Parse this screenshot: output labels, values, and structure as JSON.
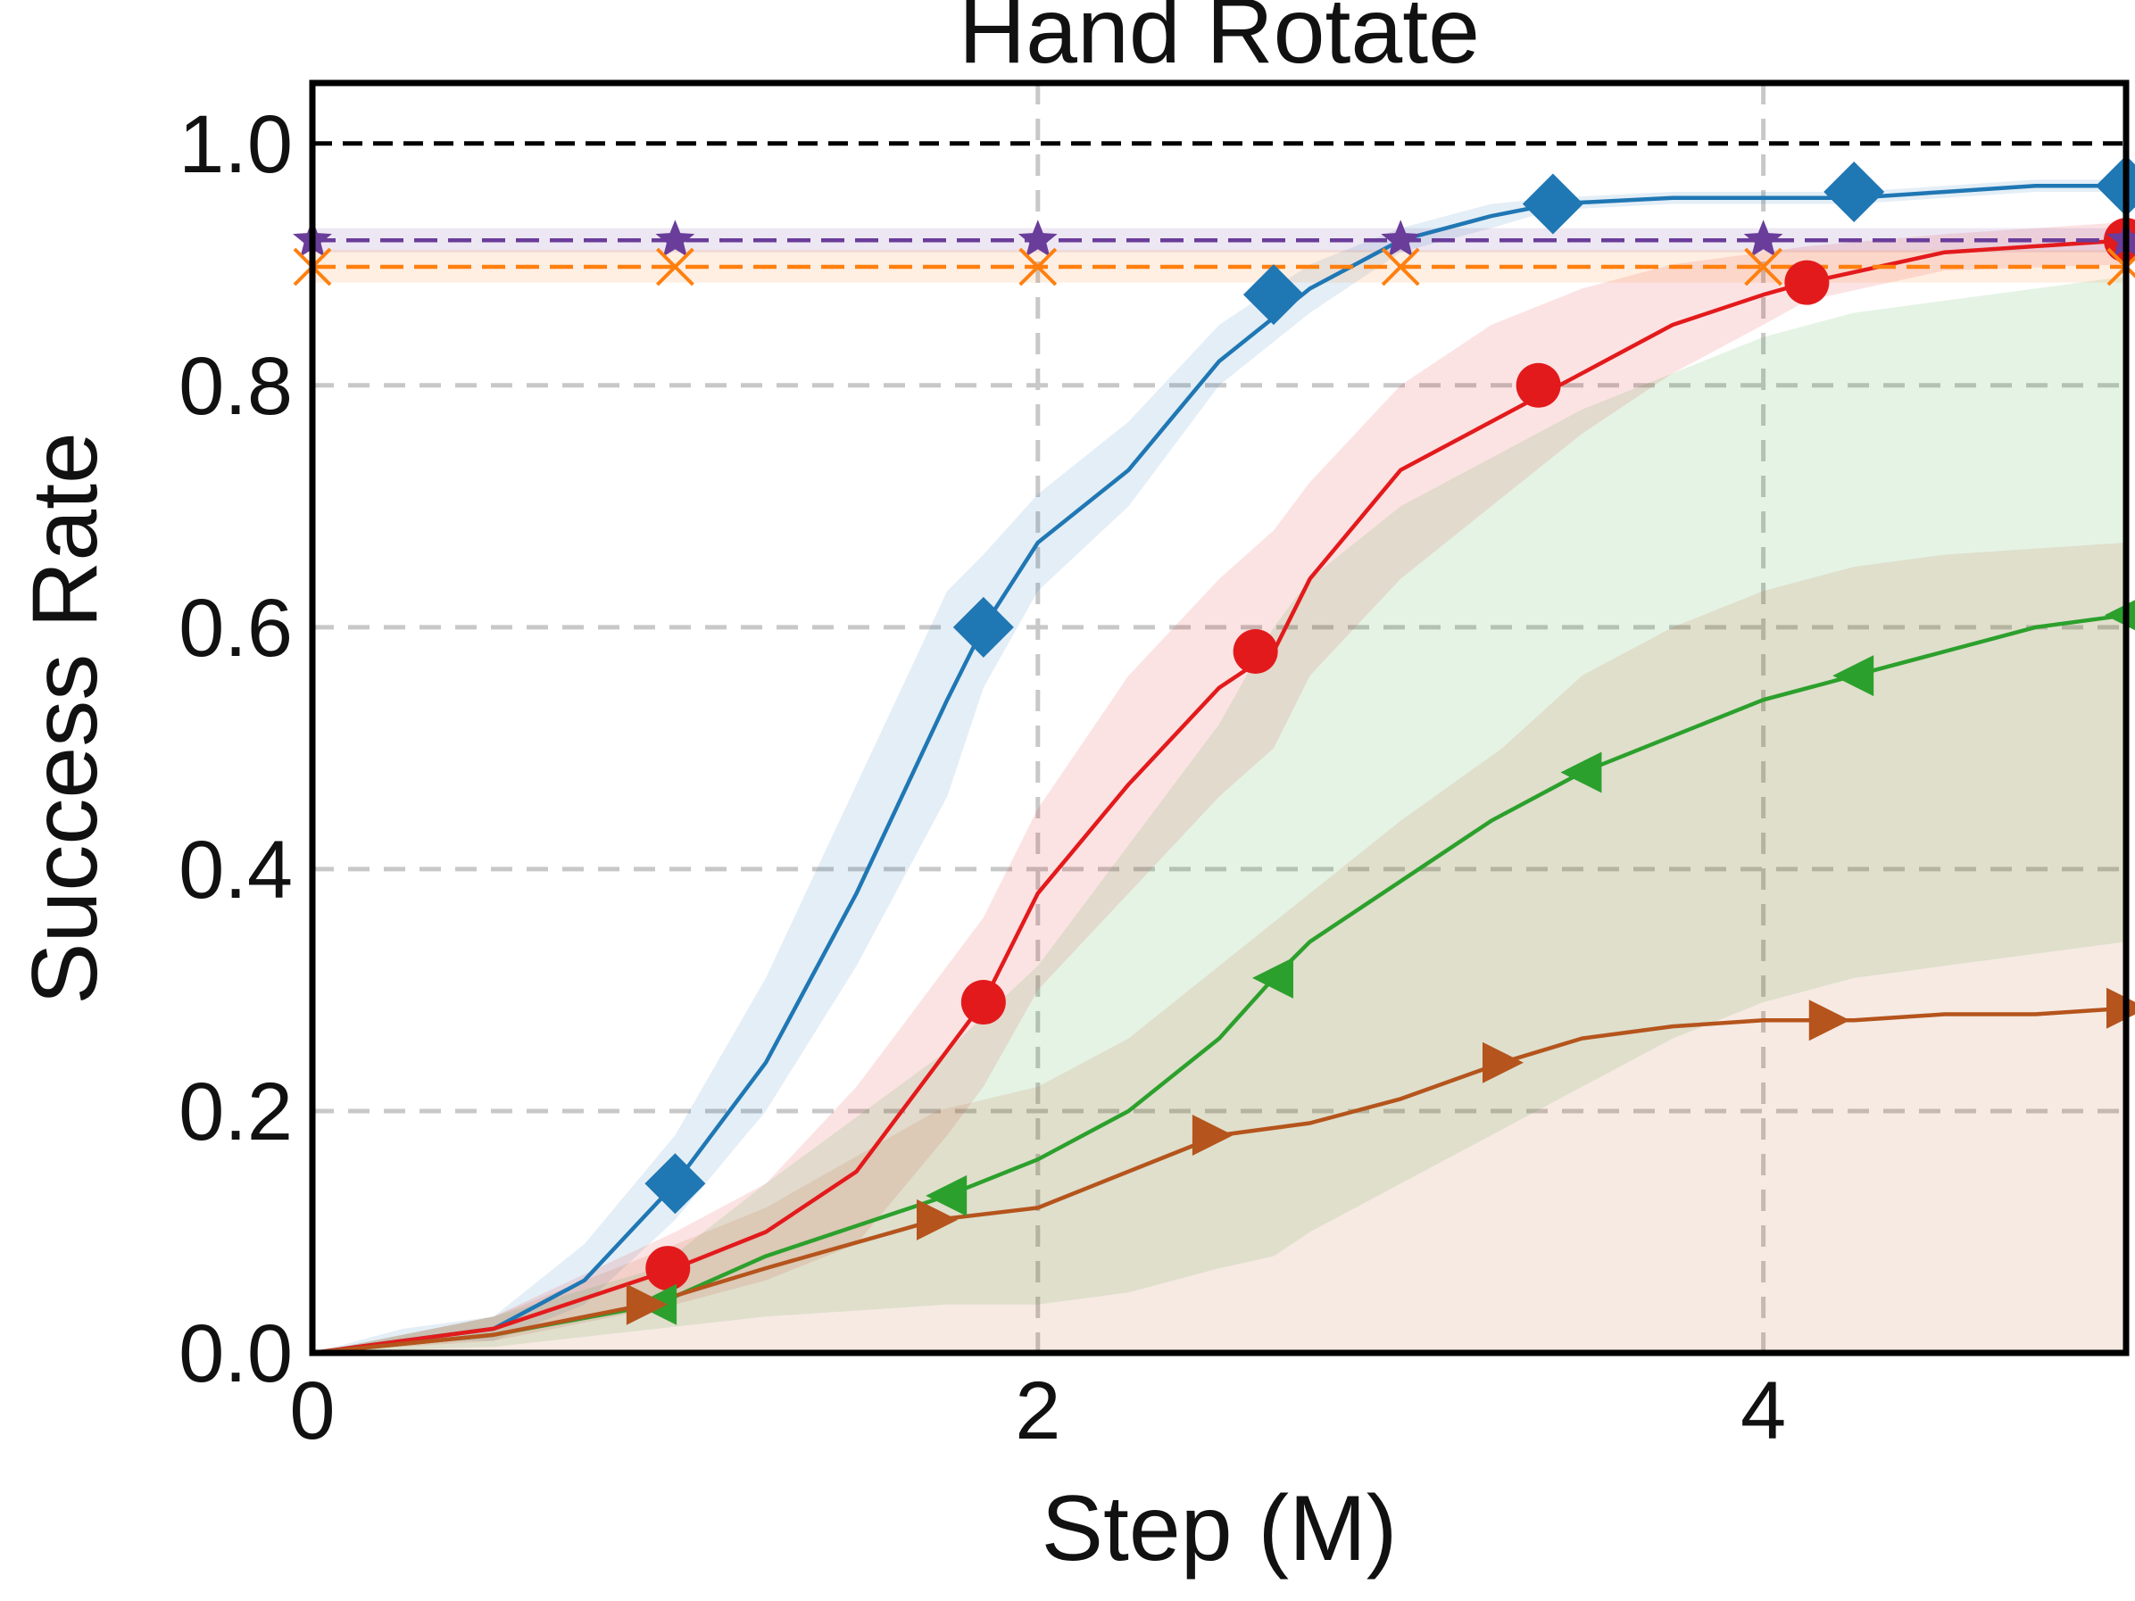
{
  "chart_data": {
    "type": "line",
    "title": "Hand Rotate",
    "xlabel": "Step (M)",
    "ylabel": "Success Rate",
    "xlim": [
      0,
      5
    ],
    "ylim": [
      0,
      1.05
    ],
    "xticks": [
      0,
      2,
      4
    ],
    "yticks": [
      0.0,
      0.2,
      0.4,
      0.6,
      0.8,
      1.0
    ],
    "xtick_labels": [
      "0",
      "2",
      "4"
    ],
    "ytick_labels": [
      "0.0",
      "0.2",
      "0.4",
      "0.6",
      "0.8",
      "1.0"
    ],
    "grid": true,
    "reference_line": {
      "y": 1.0,
      "color": "#000000",
      "style": "dashed"
    },
    "series": [
      {
        "color": "#1f77b4",
        "marker": "diamond",
        "x": [
          0,
          0.25,
          0.5,
          0.75,
          1.0,
          1.25,
          1.5,
          1.75,
          1.85,
          2.0,
          2.25,
          2.5,
          2.75,
          3.0,
          3.25,
          3.42,
          3.75,
          4.0,
          4.25,
          4.5,
          4.75,
          5.0
        ],
        "y": [
          0.0,
          0.01,
          0.02,
          0.06,
          0.14,
          0.24,
          0.38,
          0.54,
          0.6,
          0.67,
          0.73,
          0.82,
          0.88,
          0.92,
          0.94,
          0.95,
          0.955,
          0.955,
          0.955,
          0.96,
          0.965,
          0.965
        ],
        "band_low": [
          0.0,
          0.01,
          0.01,
          0.04,
          0.11,
          0.2,
          0.32,
          0.46,
          0.55,
          0.63,
          0.7,
          0.8,
          0.86,
          0.91,
          0.93,
          0.945,
          0.95,
          0.95,
          0.95,
          0.955,
          0.96,
          0.96
        ],
        "band_high": [
          0.0,
          0.02,
          0.03,
          0.09,
          0.18,
          0.31,
          0.47,
          0.63,
          0.66,
          0.71,
          0.77,
          0.85,
          0.9,
          0.93,
          0.95,
          0.955,
          0.96,
          0.96,
          0.96,
          0.965,
          0.97,
          0.97
        ],
        "marker_x": [
          1.0,
          1.85,
          2.65,
          3.42,
          4.25,
          5.0
        ],
        "marker_y": [
          0.14,
          0.6,
          0.875,
          0.95,
          0.96,
          0.965
        ]
      },
      {
        "color": "#e31a1c",
        "marker": "circle",
        "x": [
          0,
          0.5,
          1.0,
          1.25,
          1.5,
          1.75,
          1.85,
          2.0,
          2.25,
          2.5,
          2.65,
          2.75,
          3.0,
          3.25,
          3.5,
          3.75,
          4.0,
          4.12,
          4.5,
          5.0
        ],
        "y": [
          0.0,
          0.02,
          0.07,
          0.1,
          0.15,
          0.25,
          0.29,
          0.38,
          0.47,
          0.55,
          0.58,
          0.64,
          0.73,
          0.77,
          0.81,
          0.85,
          0.875,
          0.885,
          0.91,
          0.92
        ],
        "band_low": [
          0.0,
          0.01,
          0.04,
          0.06,
          0.09,
          0.18,
          0.22,
          0.3,
          0.38,
          0.46,
          0.5,
          0.56,
          0.64,
          0.7,
          0.76,
          0.81,
          0.85,
          0.87,
          0.895,
          0.9
        ],
        "band_high": [
          0.0,
          0.03,
          0.1,
          0.14,
          0.22,
          0.32,
          0.36,
          0.45,
          0.56,
          0.64,
          0.68,
          0.72,
          0.8,
          0.85,
          0.88,
          0.9,
          0.91,
          0.915,
          0.925,
          0.935
        ],
        "marker_x": [
          0.98,
          1.85,
          2.6,
          3.38,
          4.12,
          5.0
        ],
        "marker_y": [
          0.07,
          0.29,
          0.58,
          0.8,
          0.885,
          0.92
        ]
      },
      {
        "color": "#2ca02c",
        "marker": "triangle-left",
        "x": [
          0,
          0.5,
          0.95,
          1.25,
          1.75,
          2.0,
          2.25,
          2.5,
          2.65,
          2.75,
          3.0,
          3.25,
          3.5,
          3.75,
          4.0,
          4.25,
          4.5,
          4.75,
          5.0
        ],
        "y": [
          0.0,
          0.015,
          0.04,
          0.08,
          0.13,
          0.16,
          0.2,
          0.26,
          0.31,
          0.34,
          0.39,
          0.44,
          0.48,
          0.51,
          0.54,
          0.56,
          0.58,
          0.6,
          0.61
        ],
        "band_low": [
          0.0,
          0.005,
          0.02,
          0.03,
          0.04,
          0.04,
          0.05,
          0.07,
          0.08,
          0.1,
          0.14,
          0.18,
          0.22,
          0.26,
          0.29,
          0.31,
          0.32,
          0.33,
          0.34
        ],
        "band_high": [
          0.0,
          0.03,
          0.07,
          0.14,
          0.25,
          0.32,
          0.42,
          0.52,
          0.6,
          0.64,
          0.7,
          0.74,
          0.78,
          0.81,
          0.84,
          0.86,
          0.87,
          0.88,
          0.89
        ],
        "marker_x": [
          0.95,
          1.75,
          2.65,
          3.5,
          4.25,
          5.0
        ],
        "marker_y": [
          0.04,
          0.13,
          0.31,
          0.48,
          0.56,
          0.61
        ]
      },
      {
        "color": "#b5541c",
        "marker": "triangle-right",
        "x": [
          0,
          0.5,
          0.92,
          1.25,
          1.72,
          2.0,
          2.25,
          2.5,
          2.75,
          3.0,
          3.28,
          3.5,
          3.75,
          4.0,
          4.25,
          4.5,
          4.75,
          5.0
        ],
        "y": [
          0.0,
          0.015,
          0.04,
          0.07,
          0.11,
          0.12,
          0.15,
          0.18,
          0.19,
          0.21,
          0.24,
          0.26,
          0.27,
          0.275,
          0.275,
          0.28,
          0.28,
          0.285
        ],
        "band_low": [
          0.0,
          0.0,
          0.0,
          0.0,
          0.0,
          0.0,
          0.0,
          0.0,
          0.0,
          0.0,
          0.0,
          0.0,
          0.0,
          0.0,
          0.0,
          0.0,
          0.0,
          0.0
        ],
        "band_high": [
          0.0,
          0.03,
          0.08,
          0.12,
          0.2,
          0.22,
          0.26,
          0.32,
          0.38,
          0.44,
          0.5,
          0.56,
          0.6,
          0.63,
          0.65,
          0.66,
          0.665,
          0.67
        ],
        "marker_x": [
          0.92,
          1.72,
          2.48,
          3.28,
          4.18,
          5.0
        ],
        "marker_y": [
          0.04,
          0.11,
          0.18,
          0.24,
          0.275,
          0.285
        ]
      },
      {
        "color": "#6a3d9a",
        "marker": "star",
        "style": "dashed",
        "x": [
          0,
          5
        ],
        "y": [
          0.92,
          0.92
        ],
        "band_low": [
          0.91,
          0.91
        ],
        "band_high": [
          0.93,
          0.93
        ],
        "marker_x": [
          0,
          1.0,
          2.0,
          3.0,
          4.0,
          5.0
        ],
        "marker_y": [
          0.92,
          0.92,
          0.92,
          0.92,
          0.92,
          0.92
        ]
      },
      {
        "color": "#ff7f0e",
        "marker": "x",
        "style": "dashed",
        "x": [
          0,
          5
        ],
        "y": [
          0.898,
          0.898
        ],
        "band_low": [
          0.885,
          0.885
        ],
        "band_high": [
          0.912,
          0.912
        ],
        "marker_x": [
          0,
          1.0,
          2.0,
          3.0,
          4.0,
          5.0
        ],
        "marker_y": [
          0.898,
          0.898,
          0.898,
          0.898,
          0.898,
          0.898
        ]
      }
    ]
  }
}
